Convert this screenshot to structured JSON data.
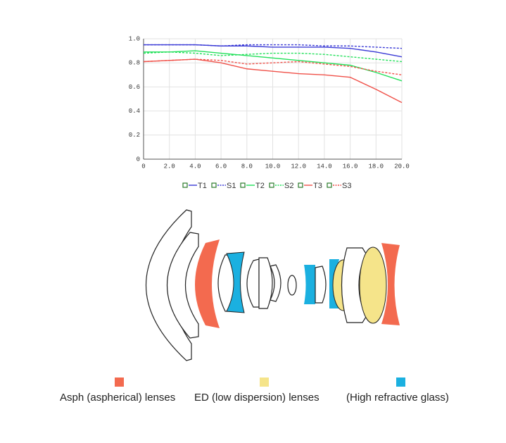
{
  "chart_data": {
    "type": "line",
    "x": [
      0,
      2,
      4,
      6,
      8,
      10,
      12,
      14,
      16,
      18,
      20
    ],
    "series": [
      {
        "name": "T1",
        "color": "#3b3bd6",
        "dash": false,
        "values": [
          0.95,
          0.95,
          0.95,
          0.94,
          0.94,
          0.93,
          0.93,
          0.93,
          0.92,
          0.89,
          0.85
        ]
      },
      {
        "name": "S1",
        "color": "#3b3bd6",
        "dash": true,
        "values": [
          0.95,
          0.95,
          0.95,
          0.94,
          0.95,
          0.95,
          0.95,
          0.94,
          0.94,
          0.93,
          0.92
        ]
      },
      {
        "name": "T2",
        "color": "#22e05a",
        "dash": false,
        "values": [
          0.89,
          0.89,
          0.9,
          0.88,
          0.86,
          0.84,
          0.82,
          0.8,
          0.78,
          0.72,
          0.65
        ]
      },
      {
        "name": "S2",
        "color": "#22e05a",
        "dash": true,
        "values": [
          0.88,
          0.89,
          0.88,
          0.86,
          0.87,
          0.88,
          0.88,
          0.87,
          0.85,
          0.83,
          0.81
        ]
      },
      {
        "name": "T3",
        "color": "#f0524a",
        "dash": false,
        "values": [
          0.81,
          0.82,
          0.83,
          0.8,
          0.75,
          0.73,
          0.71,
          0.7,
          0.68,
          0.58,
          0.47
        ]
      },
      {
        "name": "S3",
        "color": "#f0524a",
        "dash": true,
        "values": [
          0.81,
          0.82,
          0.83,
          0.82,
          0.79,
          0.8,
          0.81,
          0.79,
          0.77,
          0.73,
          0.7
        ]
      }
    ],
    "xlim": [
      0,
      20
    ],
    "xticks": [
      0,
      {
        "value": 2,
        "label": "2.0"
      },
      {
        "value": 4,
        "label": "4.0"
      },
      {
        "value": 6,
        "label": "6.0"
      },
      {
        "value": 8,
        "label": "8.0"
      },
      {
        "value": 10,
        "label": "10.0"
      },
      {
        "value": 12,
        "label": "12.0"
      },
      {
        "value": 14,
        "label": "14.0"
      },
      {
        "value": 16,
        "label": "16.0"
      },
      {
        "value": 18,
        "label": "18.0"
      },
      {
        "value": 20,
        "label": "20.0"
      }
    ],
    "ylim": [
      0,
      1
    ],
    "yticks": [
      0,
      0.2,
      0.4,
      0.6,
      0.8,
      {
        "value": 1,
        "label": "1.0"
      }
    ],
    "grid": true
  },
  "lens_legend": [
    {
      "label": "Asph (aspherical) lenses",
      "color": "#f36a4f"
    },
    {
      "label": "ED (low dispersion) lenses",
      "color": "#f5e48a"
    },
    {
      "label": "(High refractive glass)",
      "color": "#1bb0e0"
    }
  ]
}
